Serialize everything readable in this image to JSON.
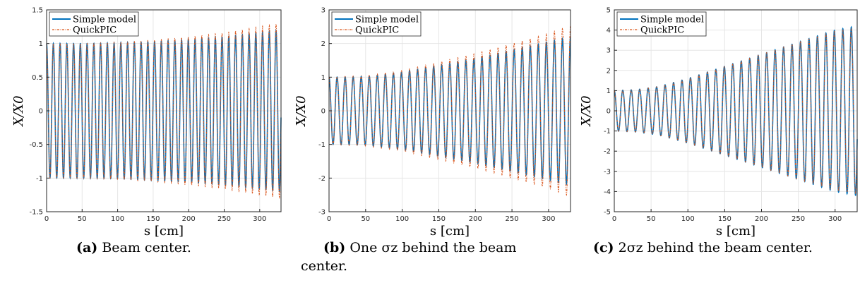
{
  "figure": {
    "panels": [
      {
        "caption_label": "(a)",
        "caption_text": "Beam center.",
        "caption_text_2": ""
      },
      {
        "caption_label": "(b)",
        "caption_text": "One σz behind the beam",
        "caption_text_2": "center."
      },
      {
        "caption_label": "(c)",
        "caption_text": "2σz behind the beam center.",
        "caption_text_2": ""
      }
    ]
  },
  "chart_data": [
    {
      "type": "line",
      "title": "",
      "xlabel": "s [cm]",
      "ylabel": "X/X0",
      "xlim": [
        0,
        330
      ],
      "ylim": [
        -1.5,
        1.5
      ],
      "xticks": [
        0,
        50,
        100,
        150,
        200,
        250,
        300
      ],
      "yticks": [
        -1.5,
        -1,
        -0.5,
        0,
        0.5,
        1,
        1.5
      ],
      "ytick_labels": [
        "-1.5",
        "-1",
        "-0.5",
        "0",
        "0.5",
        "1",
        "1.5"
      ],
      "grid": true,
      "legend_position": "top-left",
      "oscillation_period_cm": 9.5,
      "series": [
        {
          "name": "Simple model",
          "color": "#0072BD",
          "style": "solid",
          "envelope": {
            "s": [
              0,
              50,
              100,
              150,
              200,
              250,
              300,
              330
            ],
            "amplitude": [
              1.0,
              1.0,
              1.01,
              1.03,
              1.06,
              1.1,
              1.16,
              1.2
            ]
          }
        },
        {
          "name": "QuickPIC",
          "color": "#D95319",
          "style": "dash-dot",
          "envelope": {
            "s": [
              0,
              50,
              100,
              150,
              200,
              250,
              300,
              330
            ],
            "amplitude": [
              1.0,
              1.0,
              1.02,
              1.05,
              1.1,
              1.16,
              1.25,
              1.3
            ]
          }
        }
      ]
    },
    {
      "type": "line",
      "title": "",
      "xlabel": "s [cm]",
      "ylabel": "X/X0",
      "xlim": [
        0,
        330
      ],
      "ylim": [
        -3,
        3
      ],
      "xticks": [
        0,
        50,
        100,
        150,
        200,
        250,
        300
      ],
      "yticks": [
        -3,
        -2,
        -1,
        0,
        1,
        2,
        3
      ],
      "ytick_labels": [
        "-3",
        "-2",
        "-1",
        "0",
        "1",
        "2",
        "3"
      ],
      "grid": true,
      "legend_position": "top-left",
      "oscillation_period_cm": 11,
      "series": [
        {
          "name": "Simple model",
          "color": "#0072BD",
          "style": "solid",
          "envelope": {
            "s": [
              0,
              50,
              100,
              150,
              200,
              250,
              300,
              330
            ],
            "amplitude": [
              1.0,
              1.02,
              1.15,
              1.35,
              1.55,
              1.8,
              2.05,
              2.2
            ]
          }
        },
        {
          "name": "QuickPIC",
          "color": "#D95319",
          "style": "dash-dot",
          "envelope": {
            "s": [
              0,
              50,
              100,
              150,
              200,
              250,
              300,
              330
            ],
            "amplitude": [
              1.0,
              1.05,
              1.2,
              1.45,
              1.7,
              2.0,
              2.3,
              2.55
            ]
          }
        }
      ]
    },
    {
      "type": "line",
      "title": "",
      "xlabel": "s [cm]",
      "ylabel": "X/X0",
      "xlim": [
        0,
        330
      ],
      "ylim": [
        -5,
        5
      ],
      "xticks": [
        0,
        50,
        100,
        150,
        200,
        250,
        300
      ],
      "yticks": [
        -5,
        -4,
        -3,
        -2,
        -1,
        0,
        1,
        2,
        3,
        4,
        5
      ],
      "ytick_labels": [
        "-5",
        "-4",
        "-3",
        "-2",
        "-1",
        "0",
        "1",
        "2",
        "3",
        "4",
        "5"
      ],
      "grid": true,
      "legend_position": "top-left",
      "oscillation_period_cm": 11.5,
      "series": [
        {
          "name": "Simple model",
          "color": "#0072BD",
          "style": "solid",
          "envelope": {
            "s": [
              0,
              30,
              60,
              100,
              150,
              200,
              250,
              300,
              330
            ],
            "amplitude": [
              1.0,
              1.05,
              1.2,
              1.6,
              2.2,
              2.8,
              3.4,
              4.0,
              4.2
            ]
          }
        },
        {
          "name": "QuickPIC",
          "color": "#D95319",
          "style": "dash-dot",
          "envelope": {
            "s": [
              0,
              30,
              60,
              100,
              150,
              200,
              250,
              300,
              330
            ],
            "amplitude": [
              1.0,
              1.05,
              1.2,
              1.6,
              2.2,
              2.8,
              3.4,
              3.95,
              4.1
            ]
          }
        }
      ]
    }
  ]
}
